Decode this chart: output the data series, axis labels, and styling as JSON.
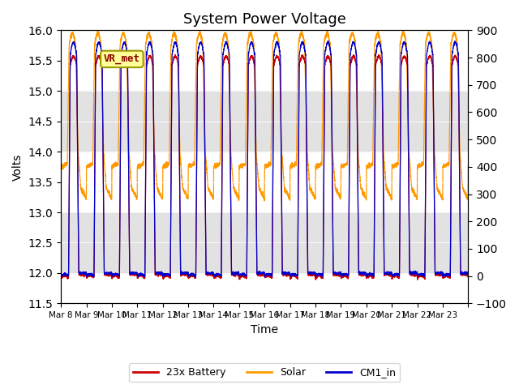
{
  "title": "System Power Voltage",
  "xlabel": "Time",
  "ylabel_left": "Volts",
  "ylim_left": [
    11.5,
    16.0
  ],
  "ylim_right": [
    -100,
    900
  ],
  "yticks_left": [
    11.5,
    12.0,
    12.5,
    13.0,
    13.5,
    14.0,
    14.5,
    15.0,
    15.5,
    16.0
  ],
  "yticks_right": [
    -100,
    0,
    100,
    200,
    300,
    400,
    500,
    600,
    700,
    800,
    900
  ],
  "num_days": 16,
  "xtick_positions": [
    0,
    1,
    2,
    3,
    4,
    5,
    6,
    7,
    8,
    9,
    10,
    11,
    12,
    13,
    14,
    15,
    16
  ],
  "xtick_labels": [
    "Mar 8",
    "Mar 9",
    "Mar 10",
    "Mar 11",
    "Mar 12",
    "Mar 13",
    "Mar 14",
    "Mar 15",
    "Mar 16",
    "Mar 17",
    "Mar 18",
    "Mar 19",
    "Mar 20",
    "Mar 21",
    "Mar 22",
    "Mar 23",
    ""
  ],
  "color_battery": "#cc0000",
  "color_solar": "#ff9900",
  "color_cm1": "#0000cc",
  "annotation_text": "VR_met",
  "legend_labels": [
    "23x Battery",
    "Solar",
    "CM1_in"
  ],
  "bg_stripe_color": "#d0d0d0",
  "bg_stripe_alpha": 0.6,
  "linewidth": 0.9,
  "title_fontsize": 13
}
